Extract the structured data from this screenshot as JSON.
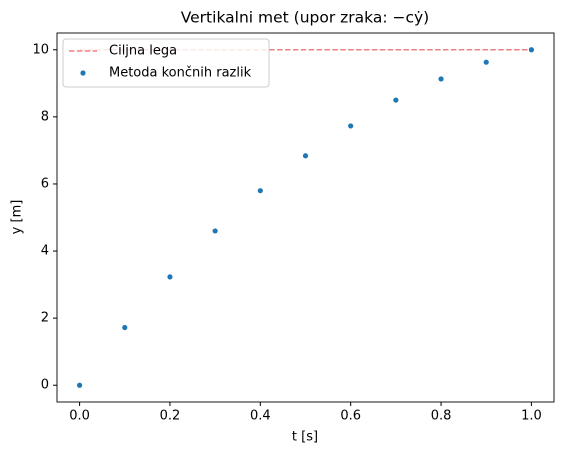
{
  "chart_data": {
    "type": "scatter",
    "title": "Vertikalni met (upor zraka: −cẏ)",
    "x_label": "t [s]",
    "y_label": "y [m]",
    "xlim": [
      -0.05,
      1.05
    ],
    "ylim": [
      -0.5,
      10.5
    ],
    "xticks": [
      {
        "value": 0,
        "label": "0.0"
      },
      0.2,
      0.4,
      0.6,
      0.8,
      {
        "value": 1,
        "label": "1.0"
      }
    ],
    "yticks": [
      0,
      2,
      4,
      6,
      8,
      10
    ],
    "legend": "upper left",
    "series": [
      {
        "name": "Ciljna lega",
        "kind": "line",
        "dashed": true,
        "color": "#f08080",
        "x": [
          0,
          1
        ],
        "values": [
          10,
          10
        ]
      },
      {
        "name": "Metoda končnih razlik",
        "kind": "scatter",
        "color": "#1f77b4",
        "x": [
          0,
          0.1,
          0.2,
          0.3,
          0.4,
          0.5,
          0.6,
          0.7,
          0.8,
          0.9,
          1.0
        ],
        "values": [
          0,
          1.72,
          3.23,
          4.6,
          5.8,
          6.84,
          7.73,
          8.5,
          9.13,
          9.63,
          10.0
        ]
      }
    ]
  }
}
